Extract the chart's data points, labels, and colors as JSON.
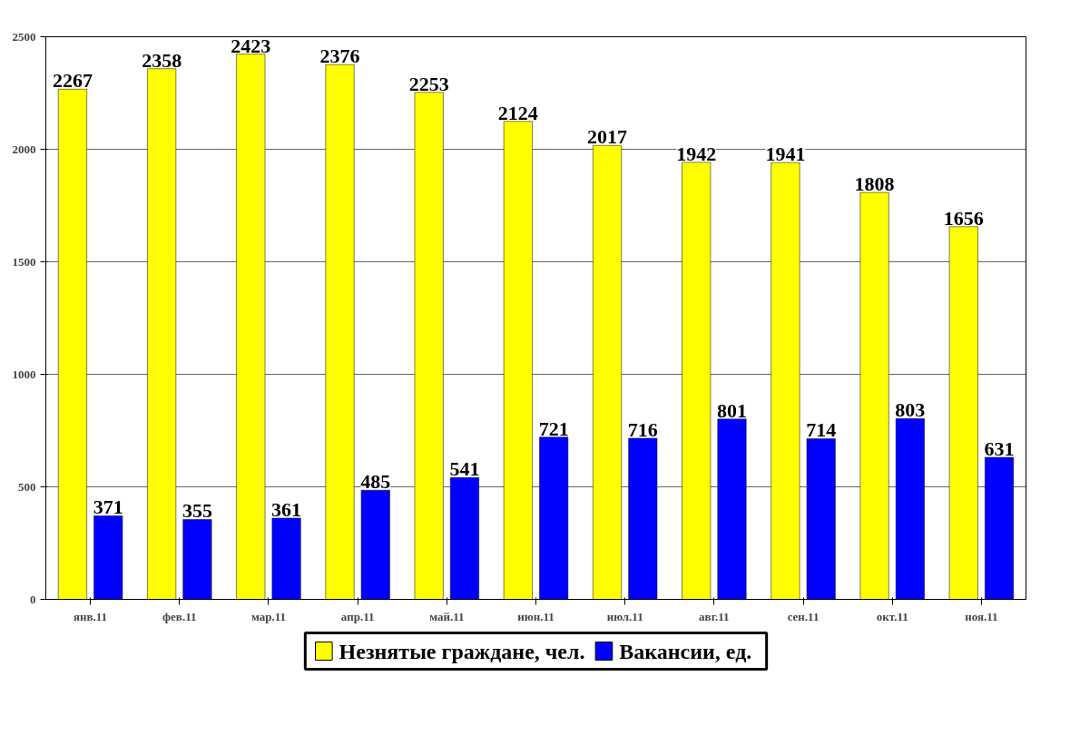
{
  "chart_data": {
    "type": "bar",
    "categories": [
      "янв.11",
      "фев.11",
      "мар.11",
      "апр.11",
      "май.11",
      "июн.11",
      "июл.11",
      "авг.11",
      "сен.11",
      "окт.11",
      "ноя.11"
    ],
    "series": [
      {
        "name": "Незнятые граждане, чел.",
        "color": "#ffff00",
        "values": [
          2267,
          2358,
          2423,
          2376,
          2253,
          2124,
          2017,
          1942,
          1941,
          1808,
          1656
        ]
      },
      {
        "name": "Вакансии, ед.",
        "color": "#0000ff",
        "values": [
          371,
          355,
          361,
          485,
          541,
          721,
          716,
          801,
          714,
          803,
          631
        ]
      }
    ],
    "ylim": [
      0,
      2500
    ],
    "yticks": [
      0,
      500,
      1000,
      1500,
      2000,
      2500
    ],
    "grid": "y",
    "legend": "bottom",
    "data_labels": true
  }
}
